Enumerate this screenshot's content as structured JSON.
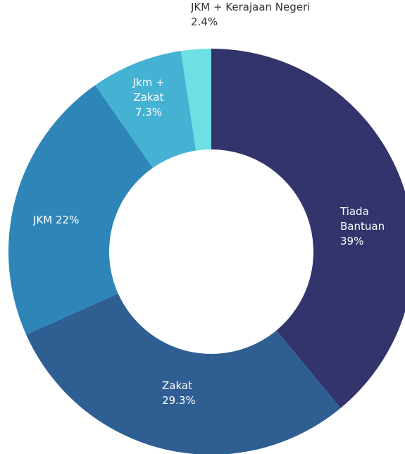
{
  "chart_data": {
    "type": "donut",
    "categories": [
      "Tiada Bantuan",
      "Zakat",
      "JKM",
      "Jkm + Zakat",
      "JKM + Kerajaan Negeri"
    ],
    "values": [
      39,
      29.3,
      22,
      7.3,
      2.4
    ],
    "value_labels": [
      "39%",
      "29.3%",
      "22%",
      "7.3%",
      "2.4%"
    ],
    "colors": [
      "#32346b",
      "#2f5e93",
      "#2e86b8",
      "#45b1d3",
      "#6ce0e3"
    ]
  }
}
